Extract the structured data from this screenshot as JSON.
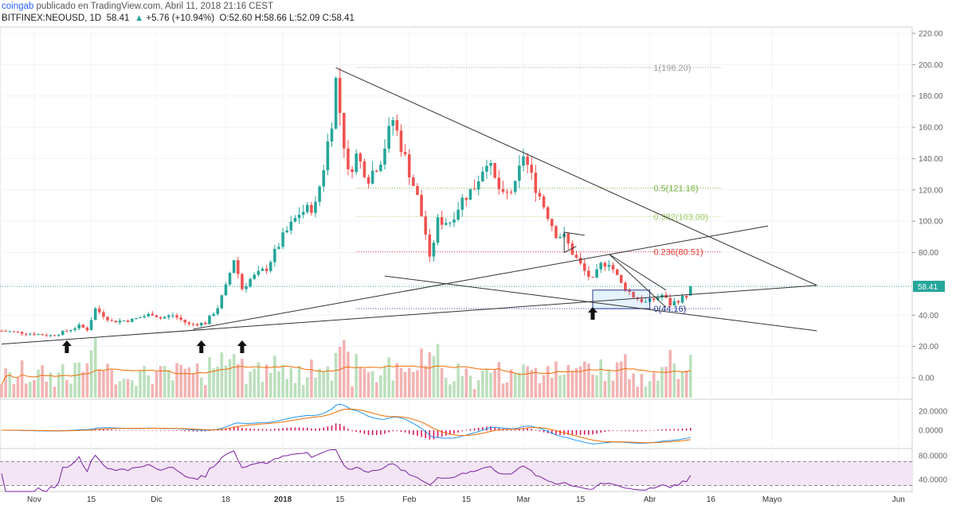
{
  "header": {
    "line1": {
      "user": "coingab",
      "rest": " publicado en TradingView.com, Abril 11, 2018 21:16 CEST"
    },
    "line2": {
      "symbol": "BITFINEX:NEOUSD, 1D",
      "last": "58.41",
      "arrow": "▲",
      "change": "+5.76 (+10.94%)",
      "ohlc": "O:52.60 H:58.66 L:52.09 C:58.41"
    }
  },
  "chart_data": {
    "type": "candlestick",
    "symbol": "NEOUSD",
    "exchange": "BITFINEX",
    "timeframe": "1D",
    "price_axis": {
      "ticks": [
        220,
        200,
        180,
        160,
        140,
        120,
        100,
        80,
        60,
        40,
        20,
        0
      ],
      "tick_labels": [
        "220.00",
        "200.00",
        "180.00",
        "160.00",
        "140.00",
        "120.00",
        "100.00",
        "80.00",
        "40.00",
        "20.00",
        "0.00"
      ],
      "ylim": [
        -7,
        222
      ],
      "grid": true
    },
    "current_price": {
      "value": 58.41,
      "label": "58.41"
    },
    "x_axis": {
      "range": [
        "2017-10-24",
        "2018-06-03"
      ],
      "ticks": [
        {
          "label": "Nov",
          "date": "2017-11-01"
        },
        {
          "label": "15",
          "date": "2017-11-15"
        },
        {
          "label": "Dic",
          "date": "2017-12-01"
        },
        {
          "label": "18",
          "date": "2017-12-18"
        },
        {
          "label": "2018",
          "date": "2018-01-01"
        },
        {
          "label": "15",
          "date": "2018-01-15"
        },
        {
          "label": "Feb",
          "date": "2018-02-01"
        },
        {
          "label": "15",
          "date": "2018-02-15"
        },
        {
          "label": "Mar",
          "date": "2018-03-01"
        },
        {
          "label": "15",
          "date": "2018-03-15"
        },
        {
          "label": "Abr",
          "date": "2018-04-01"
        },
        {
          "label": "16",
          "date": "2018-04-16"
        },
        {
          "label": "Mayo",
          "date": "2018-05-01"
        },
        {
          "label": "Jun",
          "date": "2018-06-01"
        }
      ]
    },
    "price_keypoints": [
      [
        "2017-10-24",
        30
      ],
      [
        "2017-11-05",
        27
      ],
      [
        "2017-11-08",
        29
      ],
      [
        "2017-11-12",
        33
      ],
      [
        "2017-11-14",
        31
      ],
      [
        "2017-11-16",
        44
      ],
      [
        "2017-11-20",
        36
      ],
      [
        "2017-11-25",
        37
      ],
      [
        "2017-11-30",
        41
      ],
      [
        "2017-12-02",
        38
      ],
      [
        "2017-12-05",
        40
      ],
      [
        "2017-12-09",
        34
      ],
      [
        "2017-12-13",
        35
      ],
      [
        "2017-12-16",
        45
      ],
      [
        "2017-12-18",
        58
      ],
      [
        "2017-12-20",
        76
      ],
      [
        "2017-12-22",
        57
      ],
      [
        "2017-12-24",
        63
      ],
      [
        "2017-12-28",
        70
      ],
      [
        "2018-01-01",
        90
      ],
      [
        "2018-01-05",
        105
      ],
      [
        "2018-01-09",
        110
      ],
      [
        "2018-01-11",
        135
      ],
      [
        "2018-01-13",
        165
      ],
      [
        "2018-01-14",
        190
      ],
      [
        "2018-01-15",
        170
      ],
      [
        "2018-01-17",
        130
      ],
      [
        "2018-01-19",
        142
      ],
      [
        "2018-01-22",
        128
      ],
      [
        "2018-01-25",
        140
      ],
      [
        "2018-01-28",
        165
      ],
      [
        "2018-01-31",
        140
      ],
      [
        "2018-02-03",
        115
      ],
      [
        "2018-02-05",
        92
      ],
      [
        "2018-02-06",
        75
      ],
      [
        "2018-02-08",
        100
      ],
      [
        "2018-02-11",
        100
      ],
      [
        "2018-02-14",
        114
      ],
      [
        "2018-02-17",
        122
      ],
      [
        "2018-02-20",
        140
      ],
      [
        "2018-02-22",
        126
      ],
      [
        "2018-02-24",
        115
      ],
      [
        "2018-02-27",
        122
      ],
      [
        "2018-03-01",
        143
      ],
      [
        "2018-03-03",
        128
      ],
      [
        "2018-03-06",
        110
      ],
      [
        "2018-03-09",
        92
      ],
      [
        "2018-03-11",
        90
      ],
      [
        "2018-03-13",
        80
      ],
      [
        "2018-03-16",
        68
      ],
      [
        "2018-03-18",
        62
      ],
      [
        "2018-03-20",
        72
      ],
      [
        "2018-03-22",
        74
      ],
      [
        "2018-03-25",
        60
      ],
      [
        "2018-03-28",
        52
      ],
      [
        "2018-03-31",
        48
      ],
      [
        "2018-04-02",
        50
      ],
      [
        "2018-04-04",
        53
      ],
      [
        "2018-04-06",
        47
      ],
      [
        "2018-04-09",
        51
      ],
      [
        "2018-04-10",
        52.6
      ],
      [
        "2018-04-11",
        58.41
      ]
    ],
    "fibonacci": {
      "range": [
        "2018-01-19",
        "2018-04-07"
      ],
      "levels": [
        {
          "ratio": "1",
          "price": 198.2,
          "label": "1(198.20)",
          "color": "#9e9e9e"
        },
        {
          "ratio": "0.5",
          "price": 121.18,
          "label": "0.5(121.18)",
          "color": "#7cb342"
        },
        {
          "ratio": "0.382",
          "price": 103.0,
          "label": "0.382(103.00)",
          "color": "#9ccc65"
        },
        {
          "ratio": "0.236",
          "price": 80.51,
          "label": "0.236(80.51)",
          "color": "#e53935"
        },
        {
          "ratio": "0",
          "price": 44.16,
          "label": "0(44.16)",
          "color": "#283593"
        }
      ]
    },
    "trendlines": [
      {
        "from": [
          "2018-01-14",
          198
        ],
        "to": [
          "2018-05-12",
          59
        ]
      },
      {
        "from": [
          "2017-10-24",
          21.5
        ],
        "to": [
          "2018-05-12",
          59
        ]
      },
      {
        "from": [
          "2017-12-10",
          31
        ],
        "to": [
          "2018-04-30",
          97
        ]
      },
      {
        "from": [
          "2018-01-26",
          65
        ],
        "to": [
          "2018-05-12",
          30
        ]
      },
      {
        "from": [
          "2018-03-11",
          80
        ],
        "to": [
          "2018-03-14",
          84
        ]
      },
      {
        "from": [
          "2018-03-11",
          80
        ],
        "to": [
          "2018-03-11",
          93
        ]
      },
      {
        "from": [
          "2018-03-11",
          93
        ],
        "to": [
          "2018-03-16",
          91
        ]
      },
      {
        "from": [
          "2018-03-22",
          79
        ],
        "to": [
          "2018-04-05",
          45
        ]
      },
      {
        "from": [
          "2018-03-22",
          79
        ],
        "to": [
          "2018-04-05",
          56
        ]
      }
    ],
    "box": {
      "from": [
        "2018-03-18",
        56
      ],
      "to": [
        "2018-04-01",
        44.16
      ]
    },
    "arrows": [
      "2017-11-09",
      "2017-12-12",
      "2017-12-22",
      "2018-03-18"
    ],
    "volume": {
      "ma_color": "#ef6c00"
    },
    "macd": {
      "tick_labels": [
        "20.0000",
        "0.0000"
      ],
      "macd_color": "#2196f3",
      "signal_color": "#ef6c00",
      "hist_color": "#d81b60"
    },
    "rsi": {
      "tick_labels": [
        "80.0000",
        "40.0000"
      ],
      "upper": 70,
      "lower": 30,
      "line_color": "#7b1fa2",
      "band_color": "#f3e5f5"
    }
  },
  "colors": {
    "up": "#26a69a",
    "down": "#ef5350",
    "axis": "#666666",
    "grid": "#f0f3fa",
    "trend": "#333333"
  }
}
